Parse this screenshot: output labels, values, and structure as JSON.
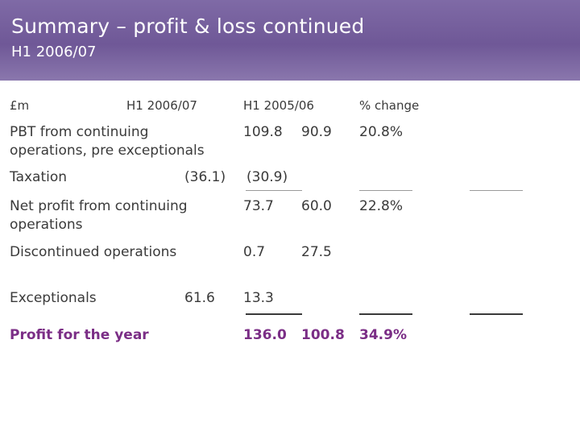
{
  "slide": {
    "title": "Summary – profit & loss continued",
    "subtitle": "H1 2006/07"
  },
  "table": {
    "headers": {
      "unit": "£m",
      "h1_2006_07": "H1 2006/07",
      "h1_2005_06": "H1 2005/06",
      "pct_change": "% change"
    },
    "pbt": {
      "label_line1": "PBT from continuing",
      "label_line2": "operations, pre exceptionals",
      "h1_2006_07": "109.8",
      "h1_2005_06": "90.9",
      "pct_change": "20.8%"
    },
    "taxation": {
      "label": "Taxation",
      "h1_2006_07": "(36.1)",
      "h1_2005_06": "(30.9)"
    },
    "net_profit": {
      "label_line1": "Net profit from continuing",
      "label_line2": "operations",
      "h1_2006_07": "73.7",
      "h1_2005_06": "60.0",
      "pct_change": "22.8%"
    },
    "discontinued": {
      "label": "Discontinued operations",
      "h1_2006_07": "0.7",
      "h1_2005_06": "27.5"
    },
    "exceptionals": {
      "label": "Exceptionals",
      "h1_2006_07": "61.6",
      "h1_2005_06": "13.3"
    },
    "profit_for_year": {
      "label": "Profit for the year",
      "h1_2006_07": "136.0",
      "h1_2005_06": "100.8",
      "pct_change": "34.9%"
    }
  },
  "colors": {
    "header_bg": "#6f5897",
    "accent": "#7b2e86",
    "text": "#3a3a3a"
  }
}
